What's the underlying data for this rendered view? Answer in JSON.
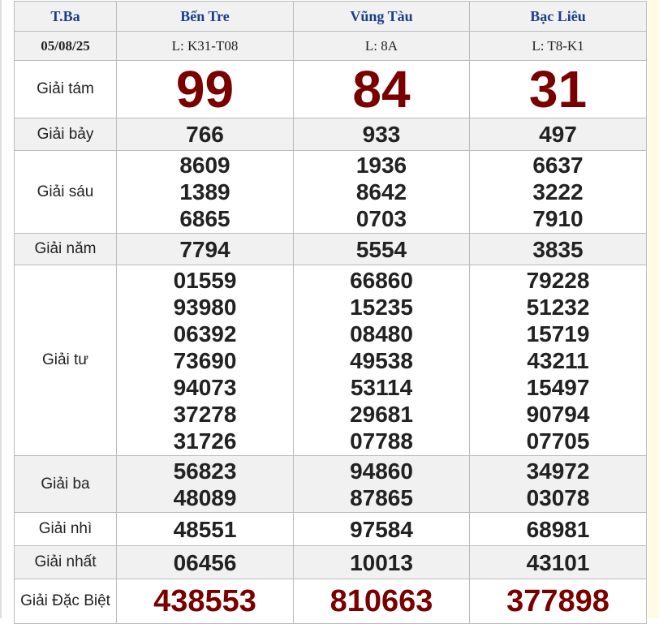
{
  "header": {
    "day": "T.Ba",
    "provinces": [
      "Bến Tre",
      "Vũng Tàu",
      "Bạc Liêu"
    ]
  },
  "subheader": {
    "date": "05/08/25",
    "codes": [
      "L: K31-T08",
      "L: 8A",
      "L: T8-K1"
    ]
  },
  "prizes": [
    {
      "label": "Giải tám",
      "style": "big",
      "values": [
        [
          "99"
        ],
        [
          "84"
        ],
        [
          "31"
        ]
      ]
    },
    {
      "label": "Giải bảy",
      "style": "num",
      "values": [
        [
          "766"
        ],
        [
          "933"
        ],
        [
          "497"
        ]
      ]
    },
    {
      "label": "Giải sáu",
      "style": "num",
      "values": [
        [
          "8609",
          "1389",
          "6865"
        ],
        [
          "1936",
          "8642",
          "0703"
        ],
        [
          "6637",
          "3222",
          "7910"
        ]
      ]
    },
    {
      "label": "Giải năm",
      "style": "num",
      "values": [
        [
          "7794"
        ],
        [
          "5554"
        ],
        [
          "3835"
        ]
      ]
    },
    {
      "label": "Giải tư",
      "style": "num",
      "values": [
        [
          "01559",
          "93980",
          "06392",
          "73690",
          "94073",
          "37278",
          "31726"
        ],
        [
          "66860",
          "15235",
          "08480",
          "49538",
          "53114",
          "29681",
          "07788"
        ],
        [
          "79228",
          "51232",
          "15719",
          "43211",
          "15497",
          "90794",
          "07705"
        ]
      ]
    },
    {
      "label": "Giải ba",
      "style": "num",
      "values": [
        [
          "56823",
          "48089"
        ],
        [
          "94860",
          "87865"
        ],
        [
          "34972",
          "03078"
        ]
      ]
    },
    {
      "label": "Giải nhì",
      "style": "num",
      "values": [
        [
          "48551"
        ],
        [
          "97584"
        ],
        [
          "68981"
        ]
      ]
    },
    {
      "label": "Giải nhất",
      "style": "num",
      "values": [
        [
          "06456"
        ],
        [
          "10013"
        ],
        [
          "43101"
        ]
      ]
    },
    {
      "label": "Giải Đặc Biệt",
      "style": "sp",
      "values": [
        [
          "438553"
        ],
        [
          "810663"
        ],
        [
          "377898"
        ]
      ]
    }
  ],
  "colors": {
    "header_text": "#1a3f8a",
    "highlight": "#7a0000",
    "row_alt": "#f1f1f1"
  }
}
